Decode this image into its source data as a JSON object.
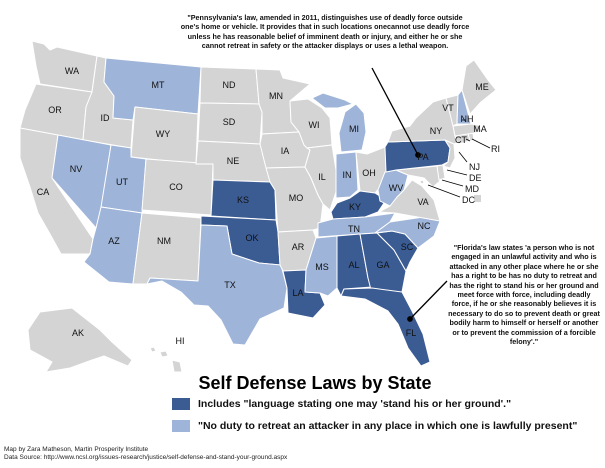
{
  "colors": {
    "stand_ground": "#3b5b93",
    "no_retreat": "#9eb4d9",
    "other": "#d4d4d4",
    "border": "#ffffff",
    "pointer": "#000000"
  },
  "legend": {
    "title": "Self Defense Laws by State",
    "items": [
      {
        "category": "stand_ground",
        "label": "Includes \"language stating one may 'stand his or her ground'.\""
      },
      {
        "category": "no_retreat",
        "label": "\"No duty to retreat an attacker in any place in which one is lawfully present\""
      }
    ]
  },
  "quotes": {
    "pennsylvania": "\"Pennsylvania's law, amended in 2011, distinguishes use of deadly force outside one's home or vehicle.  It provides that in such locations onecannot use deadly force unless he has reasonable belief of imminent death or injury, and either he or she cannot retreat in safety or the attacker displays or uses a lethal weapon.",
    "florida": "\"Florida's law states 'a person who is not engaged in an unlawful activity and who is attacked in any other place where he or she has a right to be has no duty to retreat and has the right to stand his or her ground and meet force with force, including deadly force, if he or she reasonably believes it is necessary to do so to prevent death or great bodily harm to himself or herself or another or to prevent the commission of a forcible felony'.\""
  },
  "credits": {
    "author": "Map by Zara Matheson, Martin Prosperity Institute",
    "source": "Data Source: http://www.ncsl.org/issues-research/justice/self-defense-and-stand-your-ground.aspx"
  },
  "states": {
    "WA": {
      "label": "WA",
      "category": "other"
    },
    "OR": {
      "label": "OR",
      "category": "other"
    },
    "CA": {
      "label": "CA",
      "category": "other"
    },
    "ID": {
      "label": "ID",
      "category": "other"
    },
    "NV": {
      "label": "NV",
      "category": "no_retreat"
    },
    "MT": {
      "label": "MT",
      "category": "no_retreat"
    },
    "WY": {
      "label": "WY",
      "category": "other"
    },
    "UT": {
      "label": "UT",
      "category": "no_retreat"
    },
    "AZ": {
      "label": "AZ",
      "category": "no_retreat"
    },
    "CO": {
      "label": "CO",
      "category": "other"
    },
    "NM": {
      "label": "NM",
      "category": "other"
    },
    "ND": {
      "label": "ND",
      "category": "other"
    },
    "SD": {
      "label": "SD",
      "category": "other"
    },
    "NE": {
      "label": "NE",
      "category": "other"
    },
    "KS": {
      "label": "KS",
      "category": "stand_ground"
    },
    "OK": {
      "label": "OK",
      "category": "stand_ground"
    },
    "TX": {
      "label": "TX",
      "category": "no_retreat"
    },
    "MN": {
      "label": "MN",
      "category": "other"
    },
    "IA": {
      "label": "IA",
      "category": "other"
    },
    "MO": {
      "label": "MO",
      "category": "other"
    },
    "AR": {
      "label": "AR",
      "category": "other"
    },
    "LA": {
      "label": "LA",
      "category": "stand_ground"
    },
    "WI": {
      "label": "WI",
      "category": "other"
    },
    "IL": {
      "label": "IL",
      "category": "other"
    },
    "MI": {
      "label": "MI",
      "category": "no_retreat"
    },
    "IN": {
      "label": "IN",
      "category": "no_retreat"
    },
    "OH": {
      "label": "OH",
      "category": "other"
    },
    "KY": {
      "label": "KY",
      "category": "stand_ground"
    },
    "TN": {
      "label": "TN",
      "category": "no_retreat"
    },
    "MS": {
      "label": "MS",
      "category": "no_retreat"
    },
    "AL": {
      "label": "AL",
      "category": "stand_ground"
    },
    "GA": {
      "label": "GA",
      "category": "stand_ground"
    },
    "FL": {
      "label": "FL",
      "category": "stand_ground"
    },
    "SC": {
      "label": "SC",
      "category": "stand_ground"
    },
    "NC": {
      "label": "NC",
      "category": "no_retreat"
    },
    "VA": {
      "label": "VA",
      "category": "other"
    },
    "WV": {
      "label": "WV",
      "category": "no_retreat"
    },
    "MD": {
      "label": "MD",
      "category": "other"
    },
    "DE": {
      "label": "DE",
      "category": "other"
    },
    "DC": {
      "label": "DC",
      "category": "other"
    },
    "PA": {
      "label": "PA",
      "category": "stand_ground"
    },
    "NJ": {
      "label": "NJ",
      "category": "other"
    },
    "NY": {
      "label": "NY",
      "category": "other"
    },
    "CT": {
      "label": "CT",
      "category": "other"
    },
    "RI": {
      "label": "RI",
      "category": "other"
    },
    "MA": {
      "label": "MA",
      "category": "other"
    },
    "VT": {
      "label": "VT",
      "category": "other"
    },
    "NH": {
      "label": "NH",
      "category": "no_retreat"
    },
    "ME": {
      "label": "ME",
      "category": "other"
    },
    "AK": {
      "label": "AK",
      "category": "other"
    },
    "HI": {
      "label": "HI",
      "category": "other"
    }
  }
}
